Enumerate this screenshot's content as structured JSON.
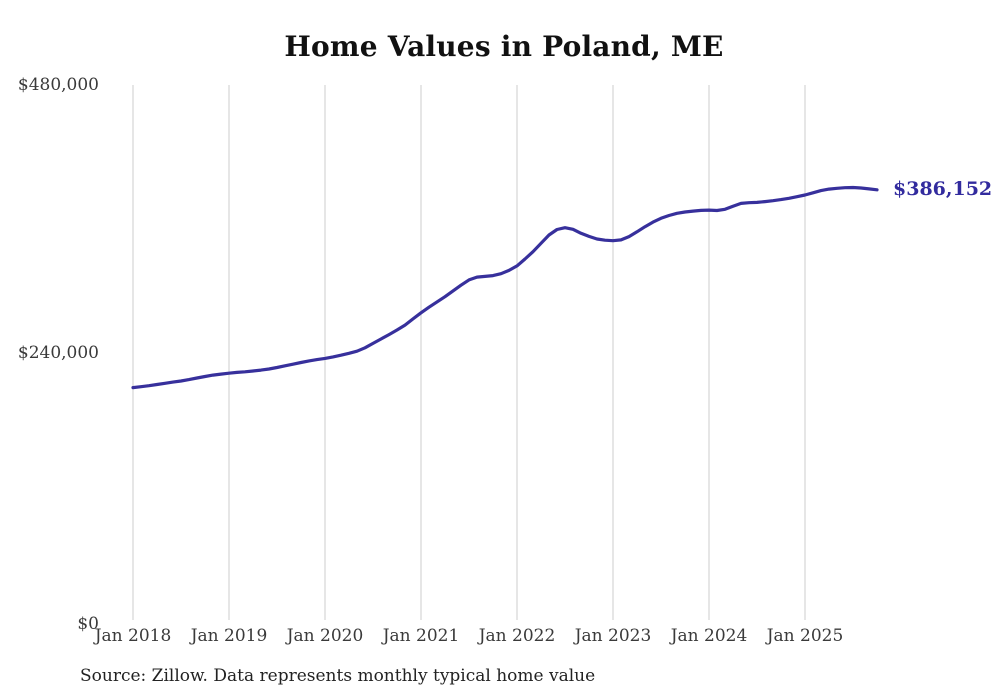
{
  "page": {
    "background": "#ffffff"
  },
  "chart": {
    "title": "Home Values in Poland, ME",
    "end_label": "$386,152",
    "source_note": "Source: Zillow. Data represents monthly typical home value"
  },
  "chart_data": {
    "type": "line",
    "title": "Home Values in Poland, ME",
    "xlabel": "",
    "ylabel": "",
    "x_start_month": "2018-01",
    "x_end_month": "2025-10",
    "x_interval": "monthly",
    "x_tick_labels": [
      "Jan 2018",
      "Jan 2019",
      "Jan 2020",
      "Jan 2021",
      "Jan 2022",
      "Jan 2023",
      "Jan 2024",
      "Jan 2025"
    ],
    "y_tick_labels": [
      "$480,000",
      "$240,000",
      "$0"
    ],
    "y_tick_values": [
      480000,
      240000,
      0
    ],
    "ylim": [
      0,
      480000
    ],
    "grid": "vertical-yearly",
    "legend": "none",
    "line_color": "#37309c",
    "grid_color": "#cccccc",
    "end_value": 386152,
    "end_label": "$386,152",
    "source": "Source: Zillow. Data represents monthly typical home value",
    "series": [
      {
        "name": "Monthly typical home value",
        "values": [
          209000,
          209800,
          210700,
          211800,
          212900,
          213900,
          214900,
          216200,
          217600,
          219000,
          220200,
          221100,
          221900,
          222600,
          223200,
          223900,
          224700,
          225700,
          227000,
          228500,
          230000,
          231500,
          232900,
          234100,
          235200,
          236500,
          238000,
          239700,
          241600,
          244700,
          248600,
          252500,
          256500,
          260600,
          265000,
          270500,
          276000,
          281000,
          285800,
          290400,
          295600,
          300700,
          305500,
          308000,
          308600,
          309300,
          311000,
          314000,
          318000,
          324200,
          330700,
          338200,
          345700,
          350600,
          352200,
          350800,
          347200,
          344400,
          342100,
          341000,
          340600,
          341300,
          344200,
          348500,
          353100,
          357200,
          360600,
          363100,
          365100,
          366300,
          367100,
          367700,
          368000,
          367600,
          368700,
          371500,
          374000,
          374600,
          374900,
          375600,
          376400,
          377400,
          378500,
          380000,
          381500,
          383500,
          385400,
          386800,
          387500,
          388000,
          388200,
          387800,
          387000,
          386152
        ]
      }
    ]
  }
}
